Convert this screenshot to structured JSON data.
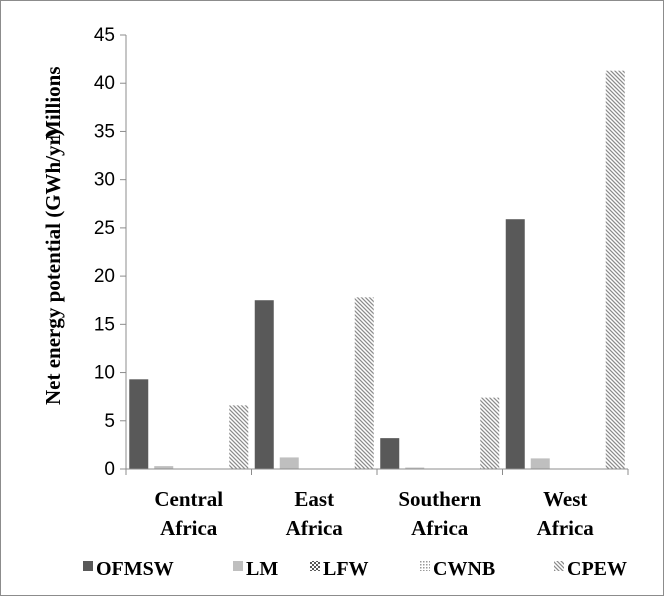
{
  "chart_data": {
    "type": "bar",
    "ylabel": "Net energy potential (GWh/yr)",
    "yunit": "Millions",
    "ylim": [
      0,
      45
    ],
    "yticks": [
      0,
      5,
      10,
      15,
      20,
      25,
      30,
      35,
      40,
      45
    ],
    "categories": [
      [
        "Central",
        "Africa"
      ],
      [
        "East",
        "Africa"
      ],
      [
        "Southern",
        "Africa"
      ],
      [
        "West",
        "Africa"
      ]
    ],
    "series": [
      {
        "name": "OFMSW",
        "values": [
          9.3,
          17.5,
          3.2,
          25.9
        ],
        "color": "#595959",
        "pattern": "solid"
      },
      {
        "name": "LM",
        "values": [
          0.3,
          1.2,
          0.15,
          1.1
        ],
        "color": "#bfbfbf",
        "pattern": "solid"
      },
      {
        "name": "LFW",
        "values": [
          0,
          0,
          0,
          0
        ],
        "color": "#595959",
        "pattern": "checker"
      },
      {
        "name": "CWNB",
        "values": [
          0,
          0,
          0,
          0
        ],
        "color": "#bfbfbf",
        "pattern": "dots"
      },
      {
        "name": "CPEW",
        "values": [
          6.6,
          17.8,
          7.4,
          41.3
        ],
        "color": "#8c8c8c",
        "pattern": "diagonal"
      }
    ],
    "grid": false,
    "legend_position": "bottom"
  }
}
